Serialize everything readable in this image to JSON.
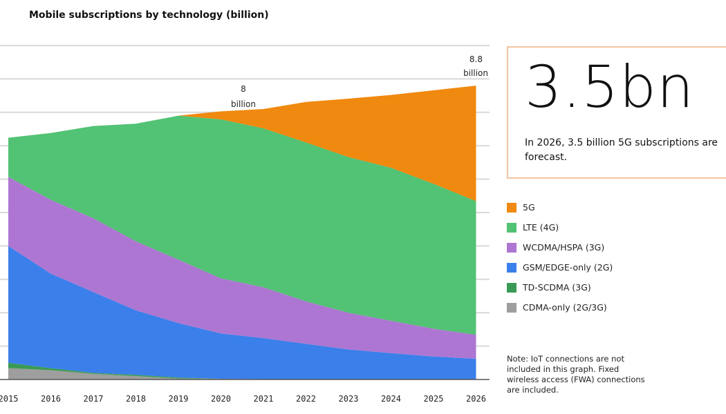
{
  "chart_data": {
    "type": "area",
    "stacked": true,
    "title": "Mobile subscriptions by technology (billion)",
    "xlabel": "",
    "ylabel": "",
    "categories": [
      "2015",
      "2016",
      "2017",
      "2018",
      "2019",
      "2020",
      "2021",
      "2022",
      "2023",
      "2024",
      "2025",
      "2026"
    ],
    "ylim": [
      0,
      10
    ],
    "grid": true,
    "legend_position": "right",
    "series": [
      {
        "name": "CDMA-only (2G/3G)",
        "color": "#9e9e9e",
        "values": [
          0.34,
          0.28,
          0.17,
          0.1,
          0.03,
          0.02,
          0.01,
          0,
          0,
          0,
          0,
          0
        ]
      },
      {
        "name": "TD-SCDMA (3G)",
        "color": "#3a9a55",
        "values": [
          0.16,
          0.06,
          0.03,
          0.04,
          0.03,
          0,
          0,
          0,
          0,
          0,
          0,
          0
        ]
      },
      {
        "name": "GSM/EDGE-only (2G)",
        "color": "#3b7fea",
        "values": [
          3.5,
          2.83,
          2.42,
          1.93,
          1.63,
          1.36,
          1.23,
          1.07,
          0.9,
          0.79,
          0.69,
          0.62
        ]
      },
      {
        "name": "WCDMA/HSPA (3G)",
        "color": "#ad76d2",
        "values": [
          2.07,
          2.21,
          2.21,
          2.07,
          1.9,
          1.65,
          1.52,
          1.27,
          1.1,
          0.97,
          0.83,
          0.72
        ]
      },
      {
        "name": "LTE (4G)",
        "color": "#52c274",
        "values": [
          1.17,
          2.0,
          2.76,
          3.52,
          4.31,
          4.76,
          4.76,
          4.76,
          4.66,
          4.58,
          4.34,
          4.0
        ]
      },
      {
        "name": "5G",
        "color": "#f0890f",
        "values": [
          0,
          0,
          0,
          0,
          0,
          0.24,
          0.58,
          1.21,
          1.75,
          2.18,
          2.8,
          3.46
        ]
      }
    ],
    "annotations": [
      {
        "x": "2020",
        "line1": "8",
        "line2": "billion"
      },
      {
        "x": "2026",
        "line1": "8.8",
        "line2": "billion"
      }
    ]
  },
  "callout": {
    "value": "3.5bn",
    "text": "In 2026, 3.5 billion 5G subscriptions are forecast.",
    "border_color": "#f2c4a0"
  },
  "legend": [
    {
      "label": "5G",
      "color": "#f0890f"
    },
    {
      "label": "LTE (4G)",
      "color": "#52c274"
    },
    {
      "label": "WCDMA/HSPA (3G)",
      "color": "#ad76d2"
    },
    {
      "label": "GSM/EDGE-only (2G)",
      "color": "#3b7fea"
    },
    {
      "label": "TD-SCDMA (3G)",
      "color": "#3a9a55"
    },
    {
      "label": "CDMA-only (2G/3G)",
      "color": "#9e9e9e"
    }
  ],
  "note": "Note: IoT connections are not included in this graph. Fixed wireless access (FWA) connections are included."
}
